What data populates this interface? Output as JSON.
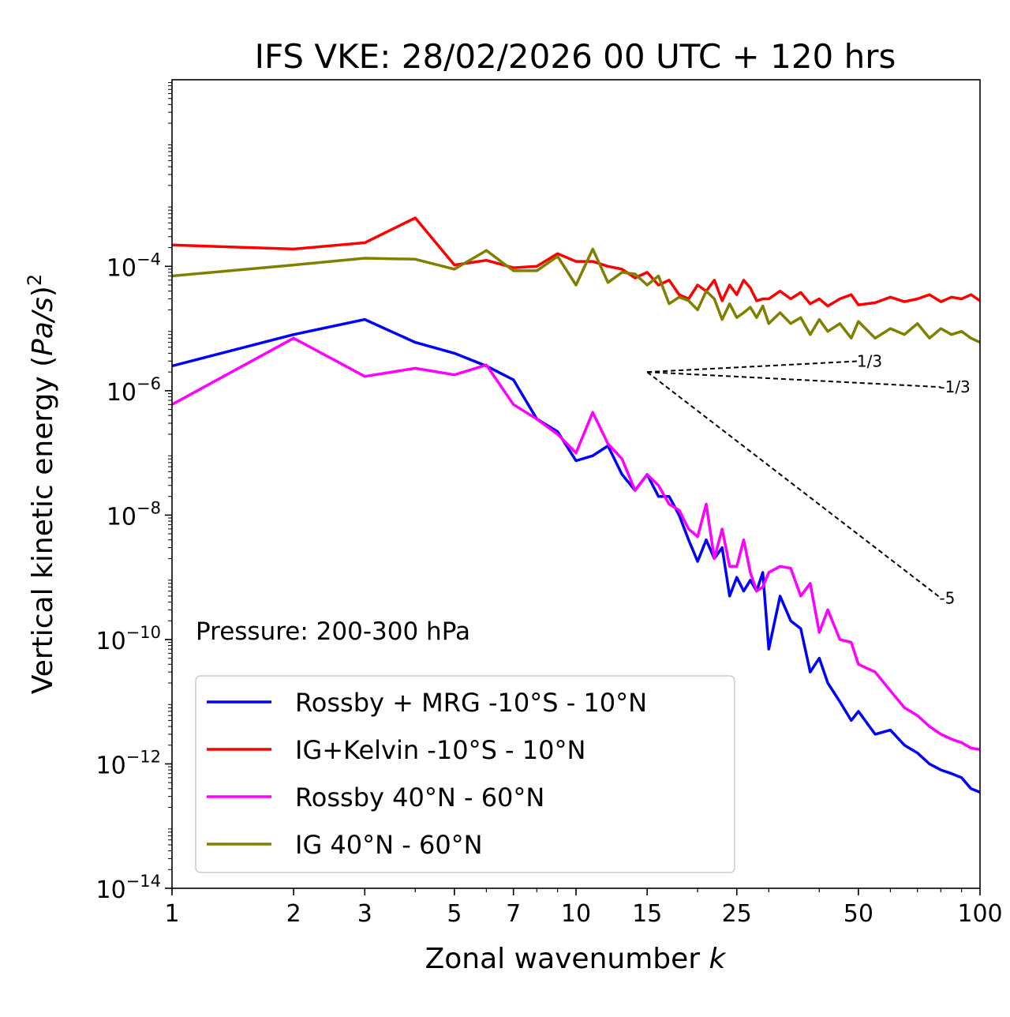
{
  "chart_data": {
    "type": "line",
    "title": "IFS VKE: 28/02/2026 00 UTC + 120 hrs",
    "xlabel": "Zonal wavenumber",
    "xlabel_var": "k",
    "ylabel": "Vertical kinetic energy (",
    "ylabel_var": "Pa/s",
    "ylabel_close": ")",
    "ylabel_exp": "2",
    "xscale": "log",
    "yscale": "log",
    "xlim": [
      1,
      100
    ],
    "ylim": [
      1e-14,
      0.1
    ],
    "xticks": [
      1,
      2,
      3,
      5,
      7,
      10,
      15,
      25,
      50,
      100
    ],
    "xtick_labels": [
      "1",
      "2",
      "3",
      "5",
      "7",
      "10",
      "15",
      "25",
      "50",
      "100"
    ],
    "yticks": [
      {
        "value": 0.0001,
        "base": "10",
        "exp": "−4"
      },
      {
        "value": 1e-06,
        "base": "10",
        "exp": "−6"
      },
      {
        "value": 1e-08,
        "base": "10",
        "exp": "−8"
      },
      {
        "value": 1e-10,
        "base": "10",
        "exp": "−10"
      },
      {
        "value": 1e-12,
        "base": "10",
        "exp": "−12"
      },
      {
        "value": 1e-14,
        "base": "10",
        "exp": "−14"
      }
    ],
    "annotation": "Pressure: 200-300 hPa",
    "legend_position": "lower-left",
    "series": [
      {
        "name": "Rossby + MRG -10°S - 10°N",
        "color": "#0000ff",
        "x": [
          1,
          2,
          3,
          4,
          5,
          6,
          7,
          8,
          9,
          10,
          11,
          12,
          13,
          14,
          15,
          16,
          17,
          18,
          19,
          20,
          21,
          22,
          23,
          24,
          25,
          26,
          27,
          28,
          29,
          30,
          32,
          34,
          36,
          38,
          40,
          42,
          45,
          48,
          50,
          55,
          60,
          65,
          70,
          75,
          80,
          85,
          90,
          95,
          100
        ],
        "y": [
          2.5e-06,
          8e-06,
          1.4e-05,
          6e-06,
          4e-06,
          2.5e-06,
          1.5e-06,
          3.5e-07,
          2.2e-07,
          7.5e-08,
          9e-08,
          1.3e-07,
          4.5e-08,
          2.5e-08,
          4.5e-08,
          2e-08,
          2e-08,
          1e-08,
          4e-09,
          1.8e-09,
          4e-09,
          2e-09,
          3e-09,
          5e-10,
          1e-09,
          6e-10,
          9e-10,
          6e-10,
          1.2e-09,
          7e-11,
          5e-10,
          2e-10,
          1.5e-10,
          3e-11,
          5e-11,
          2e-11,
          1e-11,
          5e-12,
          7e-12,
          3e-12,
          3.5e-12,
          2e-12,
          1.5e-12,
          1e-12,
          8e-13,
          7e-13,
          6e-13,
          4e-13,
          3.5e-13
        ]
      },
      {
        "name": "IG+Kelvin -10°S - 10°N",
        "color": "#ff0000",
        "x": [
          1,
          2,
          3,
          4,
          5,
          6,
          7,
          8,
          9,
          10,
          11,
          12,
          13,
          14,
          15,
          16,
          17,
          18,
          19,
          20,
          21,
          22,
          23,
          24,
          25,
          26,
          27,
          28,
          29,
          30,
          32,
          34,
          36,
          38,
          40,
          42,
          45,
          48,
          50,
          55,
          60,
          65,
          70,
          75,
          80,
          85,
          90,
          95,
          100
        ],
        "y": [
          0.00022,
          0.00019,
          0.00024,
          0.0006,
          0.000105,
          0.000125,
          9.5e-05,
          0.0001,
          0.00016,
          0.00012,
          0.00012,
          0.0001,
          9e-05,
          6.5e-05,
          8e-05,
          5e-05,
          6e-05,
          3.5e-05,
          3e-05,
          5e-05,
          4e-05,
          6e-05,
          2.8e-05,
          5e-05,
          3.5e-05,
          6e-05,
          4.5e-05,
          2.8e-05,
          3e-05,
          3e-05,
          4e-05,
          3e-05,
          3.8e-05,
          2.5e-05,
          3e-05,
          2.3e-05,
          3e-05,
          3.5e-05,
          2.4e-05,
          2.6e-05,
          3.2e-05,
          2.7e-05,
          3e-05,
          3.5e-05,
          2.7e-05,
          3.2e-05,
          3e-05,
          3.5e-05,
          2.8e-05
        ]
      },
      {
        "name": "Rossby 40°N - 60°N",
        "color": "#ff00ff",
        "x": [
          1,
          2,
          3,
          4,
          5,
          6,
          7,
          8,
          9,
          10,
          11,
          12,
          13,
          14,
          15,
          16,
          17,
          18,
          19,
          20,
          21,
          22,
          23,
          24,
          25,
          26,
          27,
          28,
          29,
          30,
          32,
          34,
          36,
          38,
          40,
          42,
          45,
          48,
          50,
          55,
          60,
          65,
          70,
          75,
          80,
          85,
          90,
          95,
          100
        ],
        "y": [
          6e-07,
          7e-06,
          1.7e-06,
          2.3e-06,
          1.8e-06,
          2.6e-06,
          6e-07,
          3.5e-07,
          2e-07,
          1e-07,
          4.5e-07,
          1.4e-07,
          8e-08,
          2.5e-08,
          4.5e-08,
          3e-08,
          1.5e-08,
          1.2e-08,
          6e-09,
          4.5e-09,
          1.5e-08,
          2e-09,
          6e-09,
          1.5e-09,
          1.5e-09,
          4e-09,
          1.2e-09,
          6e-10,
          7e-10,
          1.2e-09,
          1.5e-09,
          1.4e-09,
          5e-10,
          8e-10,
          1.3e-10,
          3e-10,
          1e-10,
          9e-11,
          4e-11,
          3e-11,
          1.5e-11,
          8e-12,
          6e-12,
          4e-12,
          3e-12,
          2.5e-12,
          2.2e-12,
          1.8e-12,
          1.7e-12
        ]
      },
      {
        "name": "IG 40°N - 60°N",
        "color": "#808000",
        "x": [
          1,
          2,
          3,
          4,
          5,
          6,
          7,
          8,
          9,
          10,
          11,
          12,
          13,
          14,
          15,
          16,
          17,
          18,
          19,
          20,
          21,
          22,
          23,
          24,
          25,
          26,
          27,
          28,
          29,
          30,
          32,
          34,
          36,
          38,
          40,
          42,
          45,
          48,
          50,
          55,
          60,
          65,
          70,
          75,
          80,
          85,
          90,
          95,
          100
        ],
        "y": [
          7e-05,
          0.000105,
          0.000135,
          0.00013,
          9e-05,
          0.00018,
          8.5e-05,
          8.5e-05,
          0.000145,
          5e-05,
          0.00019,
          5.5e-05,
          8e-05,
          7.5e-05,
          5e-05,
          7e-05,
          2.5e-05,
          3.2e-05,
          2.8e-05,
          2e-05,
          4e-05,
          3e-05,
          1.4e-05,
          2.5e-05,
          1.5e-05,
          1.8e-05,
          2.2e-05,
          1.5e-05,
          2.3e-05,
          1.2e-05,
          1.8e-05,
          1.2e-05,
          1.5e-05,
          8e-06,
          1.4e-05,
          9e-06,
          1.2e-05,
          7e-06,
          1.3e-05,
          7e-06,
          1e-05,
          8e-06,
          1.2e-05,
          7e-06,
          1e-05,
          8e-06,
          9e-06,
          7e-06,
          6e-06
        ]
      }
    ],
    "reference_slopes": [
      {
        "label": "1/3",
        "slope": 0.3333,
        "x0": 15,
        "y0": 2e-06,
        "x1": 50
      },
      {
        "label": "-1/3",
        "slope": -0.3333,
        "x0": 15,
        "y0": 2e-06,
        "x1": 80
      },
      {
        "label": "-5",
        "slope": -5,
        "x0": 15,
        "y0": 2e-06,
        "x1": 80
      }
    ]
  }
}
